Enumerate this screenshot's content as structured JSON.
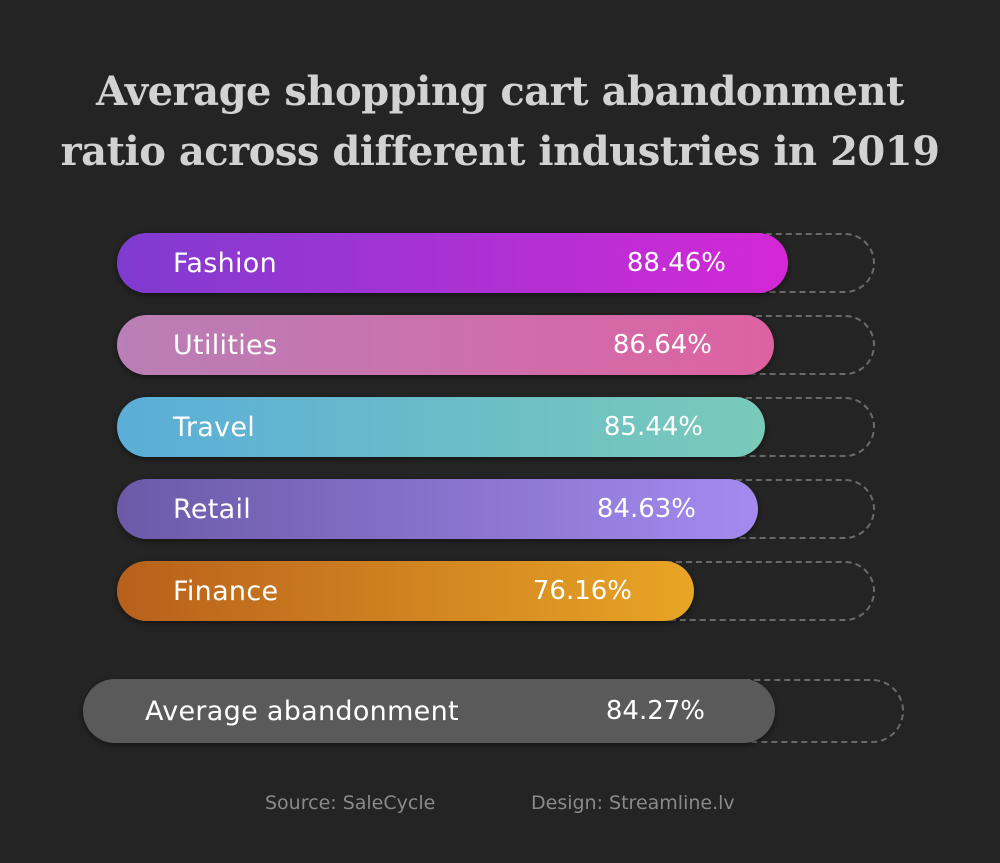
{
  "chart_data": {
    "type": "bar",
    "title_lines": [
      "Average shopping cart abandonment",
      "ratio across different industries in 2019"
    ],
    "categories": [
      "Fashion",
      "Utilities",
      "Travel",
      "Retail",
      "Finance"
    ],
    "values": [
      88.46,
      86.64,
      85.44,
      84.63,
      76.16
    ],
    "value_labels": [
      "88.46%",
      "86.64%",
      "85.44%",
      "84.63%",
      "76.16%"
    ],
    "colors": [
      [
        "#7f3bd0",
        "#d428d6"
      ],
      [
        "#b97fb6",
        "#de62a2"
      ],
      [
        "#5aaed8",
        "#7acab9"
      ],
      [
        "#6b5aa8",
        "#a48aef"
      ],
      [
        "#b8601c",
        "#e8a525"
      ]
    ],
    "average": {
      "label": "Average abandonment",
      "value": 84.27,
      "value_label": "84.27%",
      "color": "#5a5a5a"
    },
    "ylim": [
      0,
      100
    ],
    "source": "Source: SaleCycle",
    "design": "Design: Streamline.lv"
  }
}
